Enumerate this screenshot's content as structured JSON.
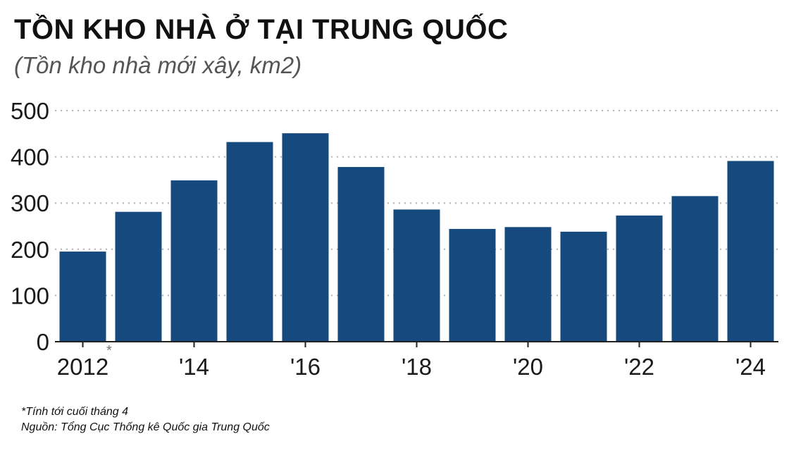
{
  "title": "TỒN KHO NHÀ Ở TẠI TRUNG QUỐC",
  "subtitle": "(Tồn kho nhà mới xây, km2)",
  "footnotes": {
    "asterisk": "*",
    "note": "*Tính tới cuối tháng 4",
    "source": "Nguồn: Tổng Cục Thống kê Quốc gia Trung Quốc"
  },
  "chart_data": {
    "type": "bar",
    "categories": [
      "2012",
      "2013",
      "2014",
      "2015",
      "2016",
      "2017",
      "2018",
      "2019",
      "2020",
      "2021",
      "2022",
      "2023",
      "2024"
    ],
    "values": [
      195,
      281,
      349,
      432,
      451,
      378,
      286,
      244,
      248,
      238,
      273,
      315,
      391
    ],
    "x_tick_labels": [
      {
        "category": "2012",
        "label": "2012"
      },
      {
        "category": "2014",
        "label": "'14"
      },
      {
        "category": "2016",
        "label": "'16"
      },
      {
        "category": "2018",
        "label": "'18"
      },
      {
        "category": "2020",
        "label": "'20"
      },
      {
        "category": "2022",
        "label": "'22"
      },
      {
        "category": "2024",
        "label": "'24"
      }
    ],
    "yticks": [
      0,
      100,
      200,
      300,
      400,
      500
    ],
    "ylim": [
      0,
      500
    ],
    "grid": true,
    "bar_color": "#164a7e",
    "title": "TỒN KHO NHÀ Ở TẠI TRUNG QUỐC",
    "subtitle": "(Tồn kho nhà mới xây, km2)",
    "xlabel": "",
    "ylabel": ""
  }
}
